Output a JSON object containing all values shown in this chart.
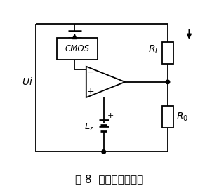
{
  "title": "图 8  恒流电路原理图",
  "title_fontsize": 11,
  "bg_color": "#ffffff",
  "line_color": "#000000",
  "fig_width": 3.12,
  "fig_height": 2.78,
  "dpi": 100
}
